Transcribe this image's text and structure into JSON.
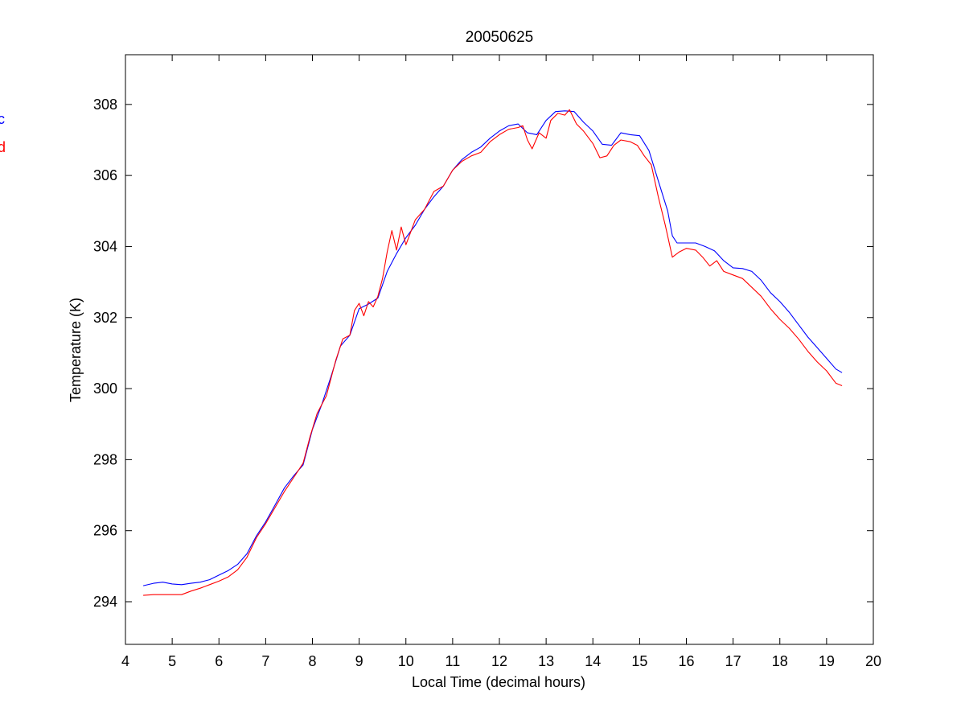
{
  "chart_data": {
    "type": "line",
    "title": "20050625",
    "xlabel": "Local Time (decimal hours)",
    "ylabel": "Temperature (K)",
    "xlim": [
      4,
      20
    ],
    "ylim": [
      292.8,
      309.4
    ],
    "xticks": [
      4,
      5,
      6,
      7,
      8,
      9,
      10,
      11,
      12,
      13,
      14,
      15,
      16,
      17,
      18,
      19,
      20
    ],
    "yticks": [
      294,
      296,
      298,
      300,
      302,
      304,
      306,
      308
    ],
    "grid": false,
    "legend_placement": "left, partially clipped",
    "series": [
      {
        "name": "c",
        "color": "#0000ff",
        "points": [
          [
            4.38,
            294.45
          ],
          [
            4.6,
            294.52
          ],
          [
            4.8,
            294.55
          ],
          [
            5.0,
            294.5
          ],
          [
            5.2,
            294.48
          ],
          [
            5.4,
            294.52
          ],
          [
            5.6,
            294.55
          ],
          [
            5.8,
            294.62
          ],
          [
            6.0,
            294.75
          ],
          [
            6.2,
            294.88
          ],
          [
            6.4,
            295.05
          ],
          [
            6.6,
            295.35
          ],
          [
            6.8,
            295.85
          ],
          [
            7.0,
            296.25
          ],
          [
            7.2,
            296.72
          ],
          [
            7.4,
            297.2
          ],
          [
            7.6,
            297.55
          ],
          [
            7.8,
            297.85
          ],
          [
            8.0,
            298.85
          ],
          [
            8.2,
            299.55
          ],
          [
            8.4,
            300.35
          ],
          [
            8.6,
            301.2
          ],
          [
            8.8,
            301.5
          ],
          [
            9.0,
            302.25
          ],
          [
            9.2,
            302.38
          ],
          [
            9.4,
            302.55
          ],
          [
            9.6,
            303.3
          ],
          [
            9.8,
            303.8
          ],
          [
            10.0,
            304.25
          ],
          [
            10.2,
            304.6
          ],
          [
            10.4,
            305.05
          ],
          [
            10.6,
            305.4
          ],
          [
            10.8,
            305.7
          ],
          [
            11.0,
            306.15
          ],
          [
            11.2,
            306.45
          ],
          [
            11.4,
            306.65
          ],
          [
            11.6,
            306.8
          ],
          [
            11.8,
            307.05
          ],
          [
            12.0,
            307.25
          ],
          [
            12.2,
            307.4
          ],
          [
            12.4,
            307.45
          ],
          [
            12.6,
            307.2
          ],
          [
            12.8,
            307.15
          ],
          [
            13.0,
            307.55
          ],
          [
            13.2,
            307.8
          ],
          [
            13.4,
            307.82
          ],
          [
            13.6,
            307.8
          ],
          [
            13.8,
            307.5
          ],
          [
            14.0,
            307.25
          ],
          [
            14.2,
            306.88
          ],
          [
            14.4,
            306.85
          ],
          [
            14.6,
            307.2
          ],
          [
            14.8,
            307.15
          ],
          [
            15.0,
            307.12
          ],
          [
            15.2,
            306.7
          ],
          [
            15.4,
            305.85
          ],
          [
            15.6,
            305.0
          ],
          [
            15.7,
            304.3
          ],
          [
            15.8,
            304.1
          ],
          [
            16.0,
            304.1
          ],
          [
            16.2,
            304.1
          ],
          [
            16.4,
            304.0
          ],
          [
            16.6,
            303.88
          ],
          [
            16.8,
            303.6
          ],
          [
            17.0,
            303.4
          ],
          [
            17.2,
            303.38
          ],
          [
            17.4,
            303.3
          ],
          [
            17.6,
            303.05
          ],
          [
            17.8,
            302.7
          ],
          [
            18.0,
            302.45
          ],
          [
            18.2,
            302.15
          ],
          [
            18.4,
            301.8
          ],
          [
            18.6,
            301.45
          ],
          [
            18.8,
            301.15
          ],
          [
            19.0,
            300.85
          ],
          [
            19.2,
            300.55
          ],
          [
            19.33,
            300.45
          ]
        ]
      },
      {
        "name": "d",
        "color": "#ff0000",
        "points": [
          [
            4.38,
            294.18
          ],
          [
            4.6,
            294.2
          ],
          [
            4.8,
            294.2
          ],
          [
            5.0,
            294.2
          ],
          [
            5.2,
            294.2
          ],
          [
            5.4,
            294.3
          ],
          [
            5.6,
            294.38
          ],
          [
            5.8,
            294.48
          ],
          [
            6.0,
            294.58
          ],
          [
            6.2,
            294.7
          ],
          [
            6.4,
            294.9
          ],
          [
            6.6,
            295.25
          ],
          [
            6.8,
            295.8
          ],
          [
            7.0,
            296.2
          ],
          [
            7.2,
            296.65
          ],
          [
            7.4,
            297.1
          ],
          [
            7.6,
            297.5
          ],
          [
            7.8,
            297.9
          ],
          [
            7.95,
            298.65
          ],
          [
            8.1,
            299.3
          ],
          [
            8.3,
            299.8
          ],
          [
            8.5,
            300.8
          ],
          [
            8.65,
            301.4
          ],
          [
            8.8,
            301.5
          ],
          [
            8.9,
            302.2
          ],
          [
            9.0,
            302.4
          ],
          [
            9.1,
            302.05
          ],
          [
            9.2,
            302.45
          ],
          [
            9.3,
            302.3
          ],
          [
            9.4,
            302.6
          ],
          [
            9.5,
            303.1
          ],
          [
            9.6,
            303.85
          ],
          [
            9.7,
            304.45
          ],
          [
            9.8,
            303.9
          ],
          [
            9.9,
            304.55
          ],
          [
            10.0,
            304.05
          ],
          [
            10.2,
            304.75
          ],
          [
            10.4,
            305.05
          ],
          [
            10.6,
            305.55
          ],
          [
            10.8,
            305.7
          ],
          [
            11.0,
            306.15
          ],
          [
            11.2,
            306.4
          ],
          [
            11.4,
            306.55
          ],
          [
            11.6,
            306.65
          ],
          [
            11.8,
            306.95
          ],
          [
            12.0,
            307.15
          ],
          [
            12.2,
            307.3
          ],
          [
            12.4,
            307.35
          ],
          [
            12.5,
            307.4
          ],
          [
            12.6,
            307.0
          ],
          [
            12.7,
            306.75
          ],
          [
            12.85,
            307.2
          ],
          [
            13.0,
            307.05
          ],
          [
            13.1,
            307.55
          ],
          [
            13.25,
            307.75
          ],
          [
            13.4,
            307.7
          ],
          [
            13.5,
            307.85
          ],
          [
            13.65,
            307.45
          ],
          [
            13.8,
            307.25
          ],
          [
            14.0,
            306.9
          ],
          [
            14.15,
            306.5
          ],
          [
            14.3,
            306.55
          ],
          [
            14.45,
            306.85
          ],
          [
            14.6,
            307.0
          ],
          [
            14.8,
            306.95
          ],
          [
            14.95,
            306.85
          ],
          [
            15.1,
            306.55
          ],
          [
            15.25,
            306.3
          ],
          [
            15.4,
            305.4
          ],
          [
            15.55,
            304.6
          ],
          [
            15.7,
            303.7
          ],
          [
            15.85,
            303.85
          ],
          [
            16.0,
            303.95
          ],
          [
            16.2,
            303.9
          ],
          [
            16.35,
            303.7
          ],
          [
            16.5,
            303.45
          ],
          [
            16.65,
            303.6
          ],
          [
            16.8,
            303.3
          ],
          [
            17.0,
            303.2
          ],
          [
            17.2,
            303.1
          ],
          [
            17.4,
            302.85
          ],
          [
            17.6,
            302.6
          ],
          [
            17.8,
            302.25
          ],
          [
            18.0,
            301.95
          ],
          [
            18.2,
            301.7
          ],
          [
            18.4,
            301.4
          ],
          [
            18.6,
            301.05
          ],
          [
            18.8,
            300.75
          ],
          [
            19.0,
            300.5
          ],
          [
            19.2,
            300.15
          ],
          [
            19.33,
            300.08
          ]
        ]
      }
    ]
  }
}
